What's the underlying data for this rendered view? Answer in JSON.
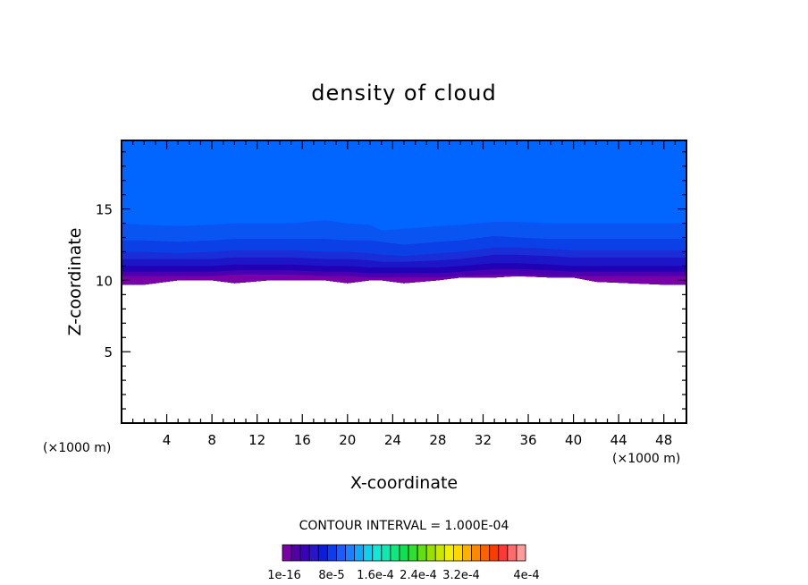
{
  "chart_data": {
    "type": "heatmap",
    "title": "density of cloud",
    "xlabel": "X-coordinate",
    "ylabel": "Z-coordinate",
    "x_unit_label": "(×1000 m)",
    "y_unit_label": "(×1000 m)",
    "xlim": [
      0,
      50
    ],
    "ylim": [
      0,
      19.8
    ],
    "x_ticks": [
      "4",
      "8",
      "12",
      "16",
      "20",
      "24",
      "28",
      "32",
      "36",
      "40",
      "44",
      "48"
    ],
    "y_ticks": [
      "5",
      "10",
      "15"
    ],
    "contour_interval_label": "CONTOUR INTERVAL = 1.000E-04",
    "colorbar_labels": [
      "1e-16",
      "8e-5",
      "1.6e-4",
      "2.4e-4",
      "3.2e-4",
      "4e-4"
    ],
    "colorbar_colors": [
      "#7a00a8",
      "#5200a8",
      "#3a00bb",
      "#2a14cc",
      "#0a1cdc",
      "#0a3cf0",
      "#1a5cff",
      "#1a80ff",
      "#10a8f8",
      "#10d0f0",
      "#10e8d8",
      "#10e8b0",
      "#10e880",
      "#10e050",
      "#30e030",
      "#60e010",
      "#98e000",
      "#c8e800",
      "#f0f000",
      "#ffd800",
      "#ffb000",
      "#ff8800",
      "#ff6000",
      "#ff3c00",
      "#ff3838",
      "#ff6a6a",
      "#ff9a9a"
    ],
    "boundary_x": [
      0,
      2,
      5,
      8,
      10,
      13,
      15,
      18,
      20,
      22,
      23,
      25,
      28,
      30,
      33,
      35,
      38,
      40,
      42,
      45,
      48,
      50
    ],
    "layers": [
      {
        "level_color": "#0066ff",
        "top": [
          19.8,
          19.8,
          19.8,
          19.8,
          19.8,
          19.8,
          19.8,
          19.8,
          19.8,
          19.8,
          19.8,
          19.8,
          19.8,
          19.8,
          19.8,
          19.8,
          19.8,
          19.8,
          19.8,
          19.8,
          19.8,
          19.8
        ]
      },
      {
        "level_color": "#0a55f2",
        "top": [
          14.0,
          13.9,
          13.8,
          13.9,
          14.0,
          14.0,
          14.0,
          14.2,
          14.0,
          13.9,
          13.5,
          13.6,
          13.8,
          13.9,
          14.1,
          14.1,
          14.0,
          14.0,
          14.0,
          14.0,
          14.0,
          14.0
        ]
      },
      {
        "level_color": "#0a40e6",
        "top": [
          12.8,
          12.8,
          12.7,
          12.8,
          12.9,
          12.9,
          12.9,
          12.9,
          12.8,
          12.8,
          12.7,
          12.5,
          12.7,
          12.8,
          13.1,
          13.0,
          12.9,
          12.9,
          12.9,
          12.9,
          12.9,
          12.9
        ]
      },
      {
        "level_color": "#1a2ed8",
        "top": [
          12.0,
          12.0,
          11.9,
          12.0,
          12.1,
          12.1,
          12.1,
          12.0,
          12.0,
          11.9,
          11.8,
          11.7,
          11.9,
          12.0,
          12.3,
          12.3,
          12.2,
          12.1,
          12.1,
          12.1,
          12.1,
          12.1
        ]
      },
      {
        "level_color": "#1c16c8",
        "top": [
          11.5,
          11.5,
          11.5,
          11.5,
          11.6,
          11.6,
          11.6,
          11.5,
          11.5,
          11.4,
          11.3,
          11.3,
          11.4,
          11.5,
          11.8,
          11.8,
          11.7,
          11.6,
          11.6,
          11.6,
          11.6,
          11.6
        ]
      },
      {
        "level_color": "#2200b4",
        "top": [
          11.0,
          11.0,
          11.0,
          11.0,
          11.1,
          11.1,
          11.1,
          11.0,
          11.0,
          10.9,
          10.9,
          10.9,
          10.9,
          11.0,
          11.2,
          11.2,
          11.1,
          11.0,
          11.0,
          11.0,
          11.0,
          11.0
        ]
      },
      {
        "level_color": "#4a00b0",
        "top": [
          10.6,
          10.6,
          10.6,
          10.6,
          10.7,
          10.7,
          10.7,
          10.6,
          10.6,
          10.5,
          10.5,
          10.5,
          10.5,
          10.6,
          10.8,
          10.8,
          10.7,
          10.6,
          10.6,
          10.6,
          10.6,
          10.6
        ]
      },
      {
        "level_color": "#7a00a8",
        "top": [
          10.3,
          10.3,
          10.3,
          10.3,
          10.4,
          10.4,
          10.4,
          10.3,
          10.3,
          10.2,
          10.2,
          10.2,
          10.2,
          10.3,
          10.4,
          10.4,
          10.3,
          10.3,
          10.3,
          10.3,
          10.3,
          10.3
        ]
      }
    ],
    "cloud_base": [
      9.7,
      9.7,
      10.0,
      10.0,
      9.8,
      10.0,
      10.0,
      10.0,
      9.8,
      10.0,
      10.0,
      9.8,
      10.0,
      10.2,
      10.2,
      10.3,
      10.2,
      10.2,
      9.9,
      9.8,
      9.7,
      9.7
    ]
  }
}
